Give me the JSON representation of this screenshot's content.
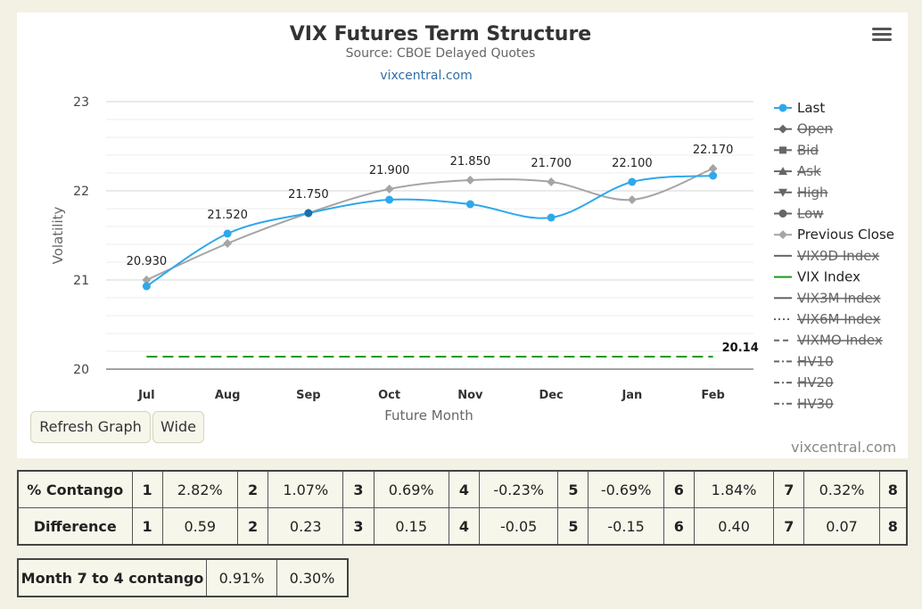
{
  "chart": {
    "title": "VIX Futures Term Structure",
    "subtitle": "Source: CBOE Delayed Quotes",
    "link_text": "vixcentral.com",
    "credit": "vixcentral.com",
    "menu_icon": "hamburger-menu-icon"
  },
  "chart_data": {
    "type": "line",
    "xlabel": "Future Month",
    "ylabel": "Volatility",
    "categories": [
      "Jul",
      "Aug",
      "Sep",
      "Oct",
      "Nov",
      "Dec",
      "Jan",
      "Feb"
    ],
    "ylim": [
      20,
      23
    ],
    "yticks": [
      "20",
      "21",
      "22",
      "23"
    ],
    "grid": true,
    "legend_position": "right",
    "series": [
      {
        "name": "Last",
        "values": [
          20.93,
          21.52,
          21.75,
          21.9,
          21.85,
          21.7,
          22.1,
          22.17
        ],
        "labels": [
          "20.930",
          "21.520",
          "21.750",
          "21.900",
          "21.850",
          "21.700",
          "22.100",
          "22.170"
        ],
        "color": "#2ea8ec"
      },
      {
        "name": "Previous Close",
        "values": [
          21.0,
          21.41,
          21.75,
          22.02,
          22.12,
          22.1,
          21.9,
          22.25
        ],
        "color": "#a5a5a5"
      },
      {
        "name": "VIX Index",
        "value": 20.14,
        "label": "20.14",
        "color": "#1a9a1a"
      }
    ]
  },
  "legend": [
    {
      "name": "Last",
      "symbol": "circle",
      "color": "#2ea8ec",
      "hidden": false
    },
    {
      "name": "Open",
      "symbol": "diamond",
      "color": "#666",
      "hidden": true
    },
    {
      "name": "Bid",
      "symbol": "square",
      "color": "#666",
      "hidden": true
    },
    {
      "name": "Ask",
      "symbol": "triangle",
      "color": "#666",
      "hidden": true
    },
    {
      "name": "High",
      "symbol": "triangle-down",
      "color": "#666",
      "hidden": true
    },
    {
      "name": "Low",
      "symbol": "circle",
      "color": "#666",
      "hidden": true
    },
    {
      "name": "Previous Close",
      "symbol": "diamond",
      "color": "#a5a5a5",
      "hidden": false
    },
    {
      "name": "VIX9D Index",
      "symbol": "solid-line",
      "color": "#666",
      "hidden": true
    },
    {
      "name": "VIX Index",
      "symbol": "solid-line",
      "color": "#1a9a1a",
      "hidden": false
    },
    {
      "name": "VIX3M Index",
      "symbol": "solid-line",
      "color": "#666",
      "hidden": true
    },
    {
      "name": "VIX6M Index",
      "symbol": "dotted-line",
      "color": "#666",
      "hidden": true
    },
    {
      "name": "VIXMO Index",
      "symbol": "dashed-line",
      "color": "#666",
      "hidden": true
    },
    {
      "name": "HV10",
      "symbol": "dashdot-line",
      "color": "#666",
      "hidden": true
    },
    {
      "name": "HV20",
      "symbol": "dashdot-line",
      "color": "#666",
      "hidden": true
    },
    {
      "name": "HV30",
      "symbol": "dashdot-line",
      "color": "#666",
      "hidden": true
    }
  ],
  "buttons": {
    "refresh": "Refresh Graph",
    "wide": "Wide"
  },
  "contango_table": {
    "rows": [
      {
        "label": "% Contango",
        "cells": [
          [
            "1",
            "2.82%"
          ],
          [
            "2",
            "1.07%"
          ],
          [
            "3",
            "0.69%"
          ],
          [
            "4",
            "-0.23%"
          ],
          [
            "5",
            "-0.69%"
          ],
          [
            "6",
            "1.84%"
          ],
          [
            "7",
            "0.32%"
          ]
        ],
        "last": "8"
      },
      {
        "label": "Difference",
        "cells": [
          [
            "1",
            "0.59"
          ],
          [
            "2",
            "0.23"
          ],
          [
            "3",
            "0.15"
          ],
          [
            "4",
            "-0.05"
          ],
          [
            "5",
            "-0.15"
          ],
          [
            "6",
            "0.40"
          ],
          [
            "7",
            "0.07"
          ]
        ],
        "last": "8"
      }
    ]
  },
  "month_table": {
    "label": "Month 7 to 4 contango",
    "values": [
      "0.91%",
      "0.30%"
    ]
  }
}
